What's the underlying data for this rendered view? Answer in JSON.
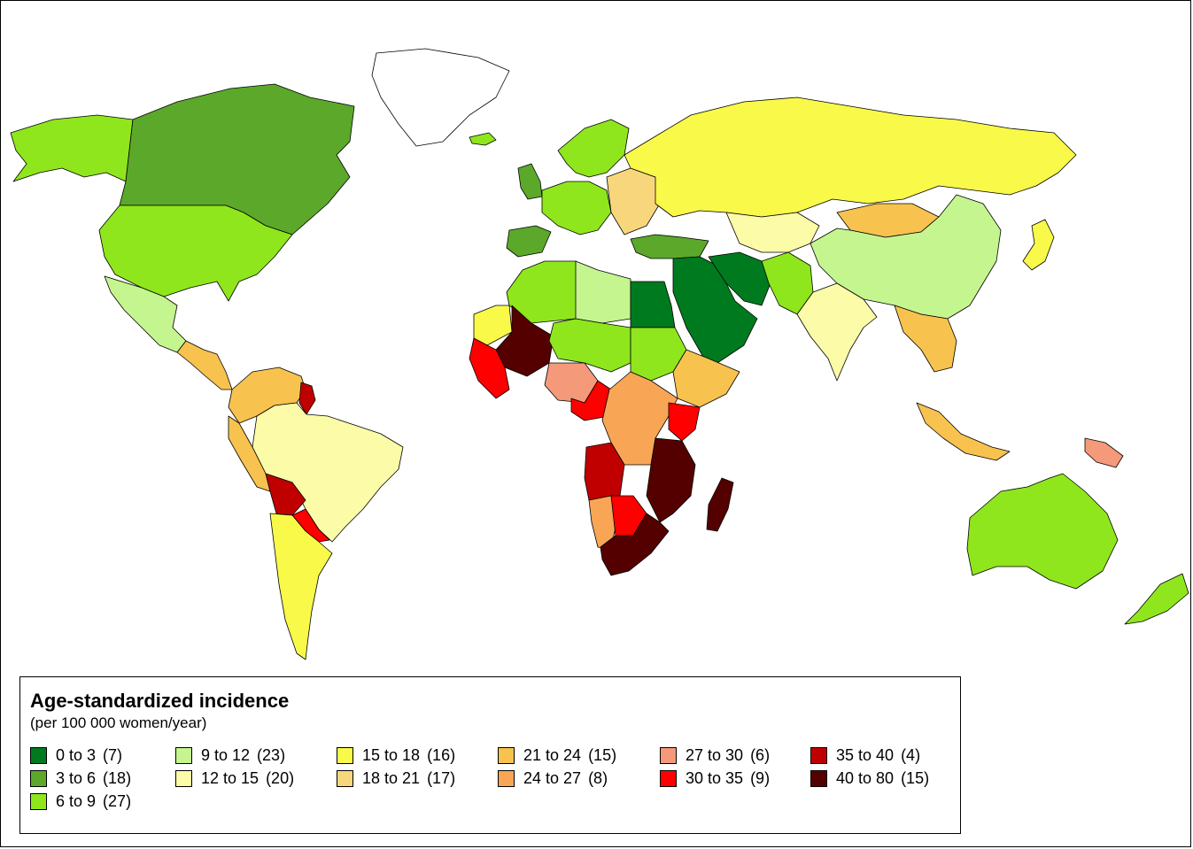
{
  "legend": {
    "title": "Age-standardized incidence",
    "subtitle": "(per 100 000 women/year)",
    "items": [
      {
        "label": "0 to 3",
        "count": "(7)",
        "color": "#007a1f"
      },
      {
        "label": "3 to 6",
        "count": "(18)",
        "color": "#5ba82a"
      },
      {
        "label": "6 to 9",
        "count": "(27)",
        "color": "#8fe61d"
      },
      {
        "label": "9 to 12",
        "count": "(23)",
        "color": "#c5f58f"
      },
      {
        "label": "12 to 15",
        "count": "(20)",
        "color": "#fbfba8"
      },
      {
        "label": "15 to 18",
        "count": "(16)",
        "color": "#f9f94a"
      },
      {
        "label": "18 to 21",
        "count": "(17)",
        "color": "#f8d77c"
      },
      {
        "label": "21 to 24",
        "count": "(15)",
        "color": "#f8c24f"
      },
      {
        "label": "24 to 27",
        "count": "(8)",
        "color": "#f8a656"
      },
      {
        "label": "27 to 30",
        "count": "(6)",
        "color": "#f4997a"
      },
      {
        "label": "30 to 35",
        "count": "(9)",
        "color": "#ff0000"
      },
      {
        "label": "35 to 40",
        "count": "(4)",
        "color": "#c00000"
      },
      {
        "label": "40 to 80",
        "count": "(15)",
        "color": "#550000"
      }
    ]
  },
  "regions": [
    {
      "name": "Alaska",
      "color": "#8fe61d"
    },
    {
      "name": "Canada",
      "color": "#5ba82a"
    },
    {
      "name": "Greenland",
      "color": "#ffffff"
    },
    {
      "name": "United States",
      "color": "#8fe61d"
    },
    {
      "name": "Mexico",
      "color": "#c5f58f"
    },
    {
      "name": "Central America",
      "color": "#f8c24f"
    },
    {
      "name": "Colombia / Venezuela",
      "color": "#f8c24f"
    },
    {
      "name": "Guyana / Suriname",
      "color": "#c00000"
    },
    {
      "name": "Brazil",
      "color": "#fbfba8"
    },
    {
      "name": "Peru",
      "color": "#f8c24f"
    },
    {
      "name": "Bolivia",
      "color": "#c00000"
    },
    {
      "name": "Paraguay",
      "color": "#ff0000"
    },
    {
      "name": "Argentina / Chile",
      "color": "#f9f94a"
    },
    {
      "name": "Iceland",
      "color": "#8fe61d"
    },
    {
      "name": "UK / Ireland",
      "color": "#5ba82a"
    },
    {
      "name": "Scandinavia",
      "color": "#8fe61d"
    },
    {
      "name": "Western Europe",
      "color": "#8fe61d"
    },
    {
      "name": "Iberia",
      "color": "#5ba82a"
    },
    {
      "name": "Eastern Europe",
      "color": "#f8d77c"
    },
    {
      "name": "Russia",
      "color": "#f9f94a"
    },
    {
      "name": "Mongolia",
      "color": "#f8c24f"
    },
    {
      "name": "China",
      "color": "#c5f58f"
    },
    {
      "name": "Central Asia",
      "color": "#fbfba8"
    },
    {
      "name": "Turkey",
      "color": "#5ba82a"
    },
    {
      "name": "Middle East",
      "color": "#007a1f"
    },
    {
      "name": "Iran",
      "color": "#007a1f"
    },
    {
      "name": "Pakistan / Afghanistan",
      "color": "#8fe61d"
    },
    {
      "name": "India",
      "color": "#fbfba8"
    },
    {
      "name": "Southeast Asia",
      "color": "#f8c24f"
    },
    {
      "name": "Japan",
      "color": "#f9f94a"
    },
    {
      "name": "Indonesia",
      "color": "#f8c24f"
    },
    {
      "name": "Papua New Guinea",
      "color": "#f4997a"
    },
    {
      "name": "Australia",
      "color": "#8fe61d"
    },
    {
      "name": "New Zealand",
      "color": "#8fe61d"
    },
    {
      "name": "Maghreb",
      "color": "#8fe61d"
    },
    {
      "name": "Libya",
      "color": "#c5f58f"
    },
    {
      "name": "Egypt",
      "color": "#007a1f"
    },
    {
      "name": "Mauritania",
      "color": "#f9f94a"
    },
    {
      "name": "Mali / Burkina Faso",
      "color": "#550000"
    },
    {
      "name": "West Africa coast",
      "color": "#ff0000"
    },
    {
      "name": "Niger / Chad",
      "color": "#8fe61d"
    },
    {
      "name": "Nigeria",
      "color": "#f4997a"
    },
    {
      "name": "Sudan",
      "color": "#8fe61d"
    },
    {
      "name": "Ethiopia",
      "color": "#f8c24f"
    },
    {
      "name": "Cameroon",
      "color": "#ff0000"
    },
    {
      "name": "Central Africa",
      "color": "#f8a656"
    },
    {
      "name": "Kenya",
      "color": "#ff0000"
    },
    {
      "name": "Tanzania / Mozambique",
      "color": "#550000"
    },
    {
      "name": "Angola",
      "color": "#c00000"
    },
    {
      "name": "Namibia",
      "color": "#f8a656"
    },
    {
      "name": "Botswana",
      "color": "#ff0000"
    },
    {
      "name": "South Africa",
      "color": "#550000"
    },
    {
      "name": "Madagascar",
      "color": "#550000"
    }
  ]
}
